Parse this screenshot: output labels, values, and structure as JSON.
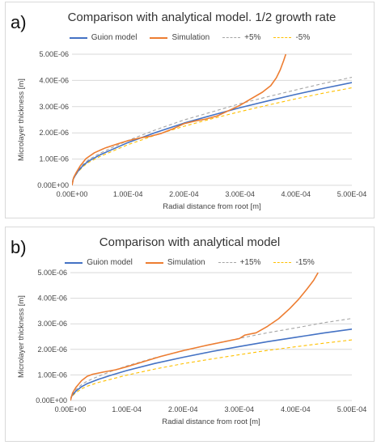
{
  "chart_data": [
    {
      "panel_label": "a)",
      "type": "line",
      "title": "Comparison with analytical model. 1/2 growth rate",
      "xlabel": "Radial distance from root [m]",
      "ylabel": "Microlayer thickness [m]",
      "xlim": [
        0,
        0.0005
      ],
      "ylim": [
        0,
        5e-06
      ],
      "x_ticks": [
        "0.00E+00",
        "1.00E-04",
        "2.00E-04",
        "3.00E-04",
        "4.00E-04",
        "5.00E-04"
      ],
      "y_ticks": [
        "0.00E+00",
        "1.00E-06",
        "2.00E-06",
        "3.00E-06",
        "4.00E-06",
        "5.00E-06"
      ],
      "grid": "horizontal",
      "legend": "top",
      "series": [
        {
          "name": "Guion model",
          "color": "#4472c4",
          "style": "solid",
          "x": [
            0,
            2e-06,
            5e-06,
            1e-05,
            2e-05,
            3e-05,
            5e-05,
            7e-05,
            0.0001,
            0.00015,
            0.0002,
            0.00025,
            0.0003,
            0.00035,
            0.0004,
            0.00045,
            0.0005
          ],
          "y": [
            0,
            2.3e-07,
            3.5e-07,
            5.2e-07,
            7.6e-07,
            9.3e-07,
            1.16e-06,
            1.35e-06,
            1.63e-06,
            2.02e-06,
            2.37e-06,
            2.67e-06,
            2.96e-06,
            3.22e-06,
            3.47e-06,
            3.7e-06,
            3.92e-06
          ]
        },
        {
          "name": "Simulation",
          "color": "#ed7d31",
          "style": "solid",
          "x": [
            0,
            3e-06,
            8e-06,
            1.5e-05,
            2.5e-05,
            4e-05,
            6e-05,
            8e-05,
            0.0001,
            0.00012,
            0.00014,
            0.00016,
            0.00018,
            0.0002,
            0.00022,
            0.00024,
            0.00026,
            0.00028,
            0.0003,
            0.00032,
            0.00034,
            0.000355,
            0.000365,
            0.000372,
            0.000378,
            0.000382
          ],
          "y": [
            0,
            3e-07,
            5e-07,
            7.5e-07,
            1.02e-06,
            1.24e-06,
            1.43e-06,
            1.57e-06,
            1.7e-06,
            1.8e-06,
            1.87e-06,
            1.98e-06,
            2.15e-06,
            2.35e-06,
            2.45e-06,
            2.53e-06,
            2.65e-06,
            2.85e-06,
            3.05e-06,
            3.3e-06,
            3.55e-06,
            3.8e-06,
            4.1e-06,
            4.4e-06,
            4.75e-06,
            5e-06
          ]
        },
        {
          "name": "+5%",
          "color": "#a5a5a5",
          "style": "dashed",
          "x": [
            0,
            2e-06,
            5e-06,
            1e-05,
            2e-05,
            3e-05,
            5e-05,
            7e-05,
            0.0001,
            0.00015,
            0.0002,
            0.00025,
            0.0003,
            0.00035,
            0.0004,
            0.00045,
            0.0005
          ],
          "y": [
            0,
            2.4e-07,
            3.7e-07,
            5.5e-07,
            8e-07,
            9.8e-07,
            1.22e-06,
            1.42e-06,
            1.71e-06,
            2.12e-06,
            2.49e-06,
            2.8e-06,
            3.11e-06,
            3.38e-06,
            3.64e-06,
            3.89e-06,
            4.12e-06
          ]
        },
        {
          "name": "-5%",
          "color": "#ffc000",
          "style": "dashed",
          "x": [
            0,
            2e-06,
            5e-06,
            1e-05,
            2e-05,
            3e-05,
            5e-05,
            7e-05,
            0.0001,
            0.00015,
            0.0002,
            0.00025,
            0.0003,
            0.00035,
            0.0004,
            0.00045,
            0.0005
          ],
          "y": [
            0,
            2.2e-07,
            3.3e-07,
            4.9e-07,
            7.2e-07,
            8.8e-07,
            1.1e-06,
            1.28e-06,
            1.55e-06,
            1.92e-06,
            2.25e-06,
            2.54e-06,
            2.81e-06,
            3.06e-06,
            3.3e-06,
            3.52e-06,
            3.72e-06
          ]
        }
      ]
    },
    {
      "panel_label": "b)",
      "type": "line",
      "title": "Comparison with analytical model",
      "xlabel": "Radial distance from root [m]",
      "ylabel": "Microlayer thickness [m]",
      "xlim": [
        0,
        0.0005
      ],
      "ylim": [
        0,
        5e-06
      ],
      "x_ticks": [
        "0.00E+00",
        "1.00E-04",
        "2.00E-04",
        "3.00E-04",
        "4.00E-04",
        "5.00E-04"
      ],
      "y_ticks": [
        "0.00E+00",
        "1.00E-06",
        "2.00E-06",
        "3.00E-06",
        "4.00E-06",
        "5.00E-06"
      ],
      "grid": "horizontal",
      "legend": "top",
      "series": [
        {
          "name": "Guion model",
          "color": "#4472c4",
          "style": "solid",
          "x": [
            0,
            2e-06,
            5e-06,
            1e-05,
            2e-05,
            3e-05,
            5e-05,
            7e-05,
            0.0001,
            0.00015,
            0.0002,
            0.00025,
            0.0003,
            0.00035,
            0.0004,
            0.00045,
            0.0005
          ],
          "y": [
            0,
            1.6e-07,
            2.5e-07,
            3.7e-07,
            5.4e-07,
            6.6e-07,
            8.3e-07,
            9.7e-07,
            1.17e-06,
            1.45e-06,
            1.69e-06,
            1.91e-06,
            2.11e-06,
            2.3e-06,
            2.47e-06,
            2.64e-06,
            2.79e-06
          ]
        },
        {
          "name": "Simulation",
          "color": "#ed7d31",
          "style": "solid",
          "x": [
            0,
            4e-06,
            1e-05,
            2e-05,
            3e-05,
            4e-05,
            6e-05,
            8e-05,
            0.0001,
            0.00013,
            0.00016,
            0.0002,
            0.00024,
            0.00028,
            0.0003,
            0.00031,
            0.00033,
            0.00035,
            0.00037,
            0.00039,
            0.000405,
            0.00042,
            0.000432,
            0.00044
          ],
          "y": [
            0,
            3e-07,
            5.2e-07,
            7.8e-07,
            9.5e-07,
            1.03e-06,
            1.12e-06,
            1.2e-06,
            1.32e-06,
            1.52e-06,
            1.72e-06,
            1.95e-06,
            2.15e-06,
            2.33e-06,
            2.42e-06,
            2.56e-06,
            2.65e-06,
            2.9e-06,
            3.2e-06,
            3.6e-06,
            3.95e-06,
            4.35e-06,
            4.7e-06,
            5e-06
          ]
        },
        {
          "name": "+15%",
          "color": "#a5a5a5",
          "style": "dashed",
          "x": [
            0,
            2e-06,
            5e-06,
            1e-05,
            2e-05,
            3e-05,
            5e-05,
            7e-05,
            0.0001,
            0.00015,
            0.0002,
            0.00025,
            0.0003,
            0.00035,
            0.0004,
            0.00045,
            0.0005
          ],
          "y": [
            0,
            1.8e-07,
            2.9e-07,
            4.3e-07,
            6.2e-07,
            7.6e-07,
            9.5e-07,
            1.12e-06,
            1.35e-06,
            1.67e-06,
            1.94e-06,
            2.2e-06,
            2.43e-06,
            2.65e-06,
            2.84e-06,
            3.04e-06,
            3.21e-06
          ]
        },
        {
          "name": "-15%",
          "color": "#ffc000",
          "style": "dashed",
          "x": [
            0,
            2e-06,
            5e-06,
            1e-05,
            2e-05,
            3e-05,
            5e-05,
            7e-05,
            0.0001,
            0.00015,
            0.0002,
            0.00025,
            0.0003,
            0.00035,
            0.0004,
            0.00045,
            0.0005
          ],
          "y": [
            0,
            1.4e-07,
            2.1e-07,
            3.1e-07,
            4.6e-07,
            5.6e-07,
            7.1e-07,
            8.2e-07,
            9.9e-07,
            1.23e-06,
            1.44e-06,
            1.62e-06,
            1.79e-06,
            1.96e-06,
            2.1e-06,
            2.24e-06,
            2.37e-06
          ]
        }
      ]
    }
  ]
}
